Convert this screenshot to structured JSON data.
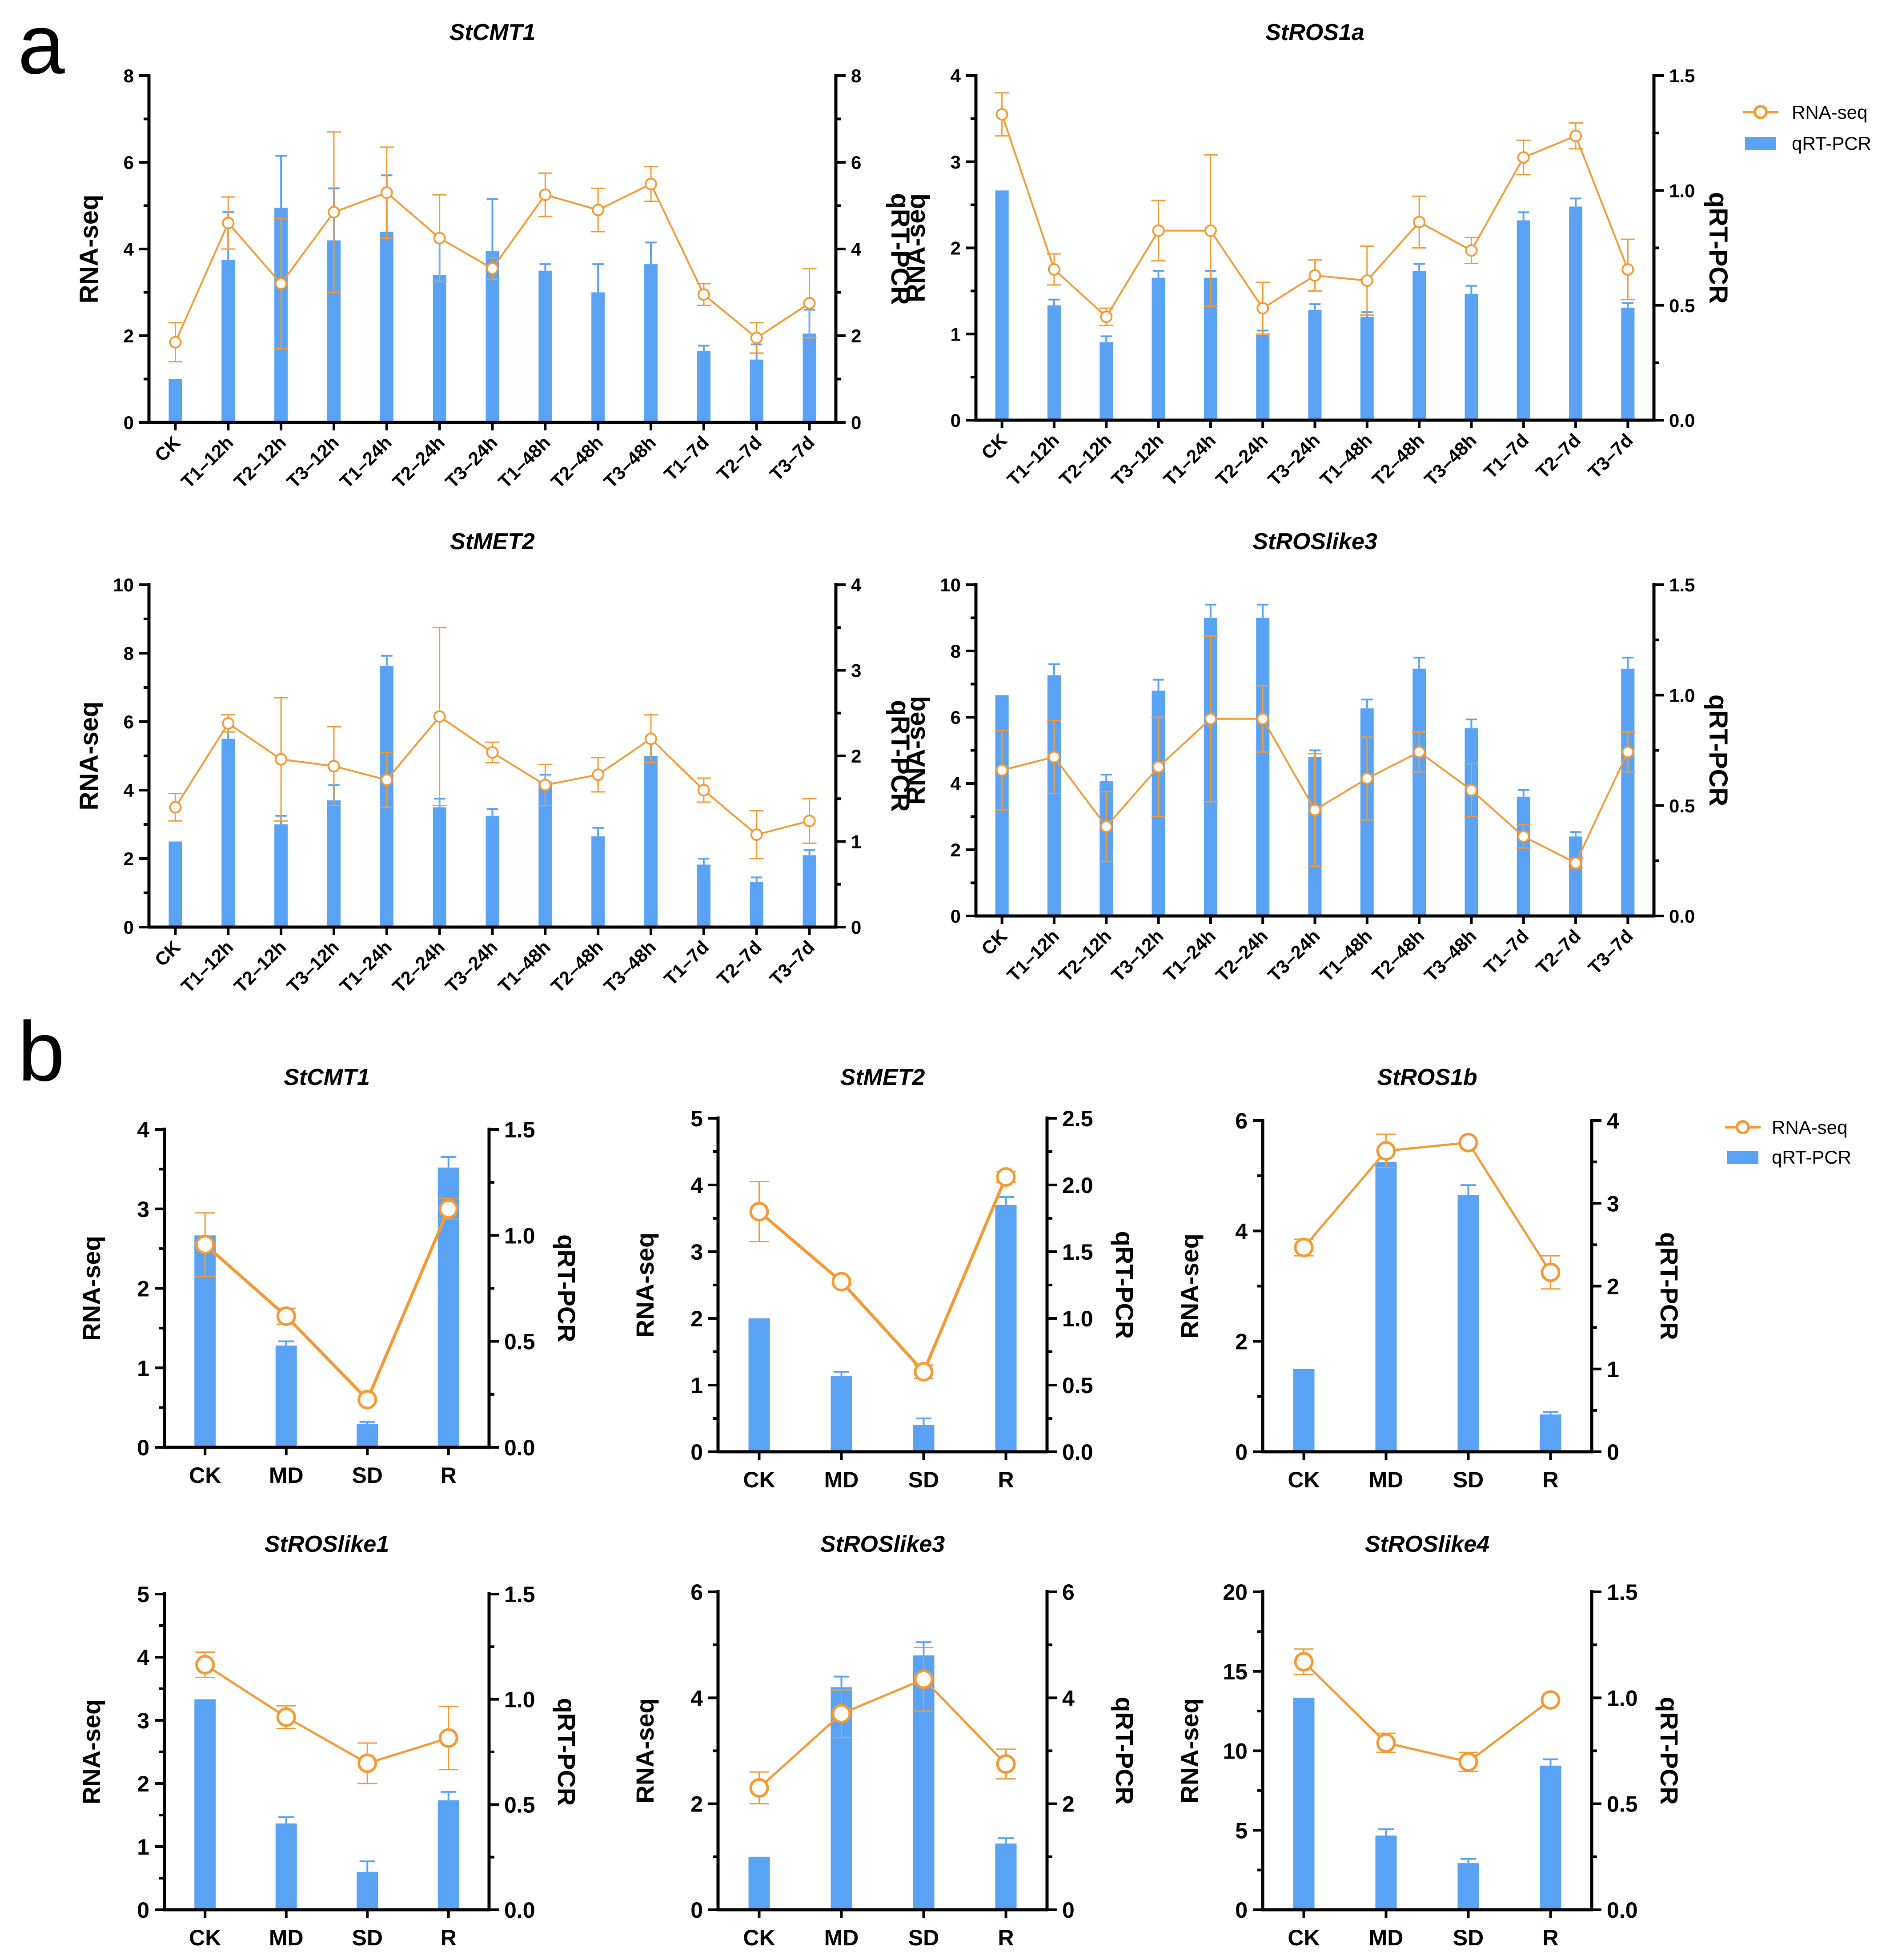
{
  "panels": {
    "a": "a",
    "b": "b"
  },
  "legend": {
    "line_label": "RNA-seq",
    "bar_label": "qRT-PCR"
  },
  "colors": {
    "line": "#F39A35",
    "bar": "#5AA3F4",
    "axis": "#000000"
  },
  "chart_data": [
    {
      "id": "a1",
      "type": "bar+line",
      "title": "StCMT1",
      "ylabel_left": "RNA-seq",
      "ylabel_right": "qRT-PCR",
      "ylim_left": [
        0,
        8
      ],
      "yticks_left": [
        0,
        2,
        4,
        6,
        8
      ],
      "ylim_right": [
        0,
        8
      ],
      "yticks_right": [
        0,
        2,
        4,
        6,
        8
      ],
      "categories": [
        "CK",
        "T1–12h",
        "T2–12h",
        "T3–12h",
        "T1–24h",
        "T2–24h",
        "T3–24h",
        "T1–48h",
        "T2–48h",
        "T3–48h",
        "T1–7d",
        "T2–7d",
        "T3–7d"
      ],
      "series": [
        {
          "name": "RNA-seq",
          "kind": "line",
          "axis": "left",
          "values": [
            1.85,
            4.6,
            3.2,
            4.85,
            5.3,
            4.25,
            3.55,
            5.25,
            4.9,
            5.5,
            2.95,
            1.95,
            2.75
          ],
          "errors": [
            0.45,
            0.6,
            1.5,
            1.85,
            1.05,
            1.0,
            0.25,
            0.5,
            0.5,
            0.4,
            0.25,
            0.35,
            0.8
          ]
        },
        {
          "name": "qRT-PCR",
          "kind": "bar",
          "axis": "right",
          "values": [
            1.0,
            3.75,
            4.95,
            4.2,
            4.4,
            3.4,
            3.95,
            3.5,
            3.0,
            3.65,
            1.65,
            1.45,
            2.05
          ],
          "errors": [
            0,
            1.1,
            1.2,
            1.2,
            1.3,
            0.8,
            1.2,
            0.15,
            0.65,
            0.5,
            0.12,
            0.35,
            0.55
          ]
        }
      ]
    },
    {
      "id": "a2",
      "type": "bar+line",
      "title": "StROS1a",
      "ylabel_left": "RNA-seq",
      "ylabel_right": "qRT-PCR",
      "ylim_left": [
        0,
        4
      ],
      "yticks_left": [
        0,
        1,
        2,
        3,
        4
      ],
      "ylim_right": [
        0,
        1.5
      ],
      "yticks_right": [
        0.0,
        0.5,
        1.0,
        1.5
      ],
      "right_tick_format": 1,
      "categories": [
        "CK",
        "T1–12h",
        "T2–12h",
        "T3–12h",
        "T1–24h",
        "T2–24h",
        "T3–24h",
        "T1–48h",
        "T2–48h",
        "T3–48h",
        "T1–7d",
        "T2–7d",
        "T3–7d"
      ],
      "series": [
        {
          "name": "RNA-seq",
          "kind": "line",
          "axis": "left",
          "values": [
            3.55,
            1.75,
            1.2,
            2.2,
            2.2,
            1.3,
            1.68,
            1.62,
            2.3,
            1.97,
            3.05,
            3.3,
            1.75
          ],
          "errors": [
            0.25,
            0.18,
            0.1,
            0.35,
            0.88,
            0.3,
            0.18,
            0.4,
            0.3,
            0.15,
            0.2,
            0.15,
            0.35
          ]
        },
        {
          "name": "qRT-PCR",
          "kind": "bar",
          "axis": "right",
          "values": [
            1.0,
            0.5,
            0.34,
            0.62,
            0.62,
            0.37,
            0.48,
            0.45,
            0.65,
            0.55,
            0.87,
            0.93,
            0.49
          ],
          "errors": [
            0,
            0.025,
            0.025,
            0.03,
            0.03,
            0.02,
            0.025,
            0.02,
            0.03,
            0.035,
            0.035,
            0.035,
            0.02
          ]
        }
      ]
    },
    {
      "id": "a3",
      "type": "bar+line",
      "title": "StMET2",
      "ylabel_left": "RNA-seq",
      "ylabel_right": "qRT-PCR",
      "ylim_left": [
        0,
        10
      ],
      "yticks_left": [
        0,
        2,
        4,
        6,
        8,
        10
      ],
      "ylim_right": [
        0,
        4
      ],
      "yticks_right": [
        0,
        1,
        2,
        3,
        4
      ],
      "categories": [
        "CK",
        "T1–12h",
        "T2–12h",
        "T3–12h",
        "T1–24h",
        "T2–24h",
        "T3–24h",
        "T1–48h",
        "T2–48h",
        "T3–48h",
        "T1–7d",
        "T2–7d",
        "T3–7d"
      ],
      "series": [
        {
          "name": "RNA-seq",
          "kind": "line",
          "axis": "left",
          "values": [
            3.5,
            5.95,
            4.9,
            4.7,
            4.3,
            6.15,
            5.1,
            4.15,
            4.45,
            5.5,
            4.0,
            2.7,
            3.1
          ],
          "errors": [
            0.4,
            0.25,
            1.8,
            1.15,
            0.8,
            2.6,
            0.3,
            0.6,
            0.5,
            0.7,
            0.35,
            0.7,
            0.65
          ]
        },
        {
          "name": "qRT-PCR",
          "kind": "bar",
          "axis": "right",
          "values": [
            1.0,
            2.2,
            1.2,
            1.48,
            3.05,
            1.4,
            1.3,
            1.7,
            1.06,
            2.0,
            0.73,
            0.53,
            0.84
          ],
          "errors": [
            0,
            0.2,
            0.1,
            0.18,
            0.12,
            0.1,
            0.08,
            0.08,
            0.1,
            0.2,
            0.07,
            0.05,
            0.06
          ]
        }
      ]
    },
    {
      "id": "a4",
      "type": "bar+line",
      "title": "StROSlike3",
      "ylabel_left": "RNA-seq",
      "ylabel_right": "qRT-PCR",
      "ylim_left": [
        0,
        10
      ],
      "yticks_left": [
        0,
        2,
        4,
        6,
        8,
        10
      ],
      "ylim_right": [
        0,
        1.5
      ],
      "yticks_right": [
        0.0,
        0.5,
        1.0,
        1.5
      ],
      "right_tick_format": 1,
      "categories": [
        "CK",
        "T1–12h",
        "T2–12h",
        "T3–12h",
        "T1–24h",
        "T2–24h",
        "T3–24h",
        "T1–48h",
        "T2–48h",
        "T3–48h",
        "T1–7d",
        "T2–7d",
        "T3–7d"
      ],
      "series": [
        {
          "name": "RNA-seq",
          "kind": "line",
          "axis": "left",
          "values": [
            4.4,
            4.8,
            2.7,
            4.5,
            5.95,
            5.95,
            3.2,
            4.15,
            4.95,
            3.8,
            2.4,
            1.6,
            4.95
          ],
          "errors": [
            1.2,
            1.1,
            1.05,
            1.5,
            2.5,
            1.0,
            1.7,
            1.25,
            0.6,
            0.8,
            0.35,
            0.15,
            0.6
          ]
        },
        {
          "name": "qRT-PCR",
          "kind": "bar",
          "axis": "right",
          "values": [
            1.0,
            1.09,
            0.61,
            1.02,
            1.35,
            1.35,
            0.72,
            0.94,
            1.12,
            0.85,
            0.54,
            0.36,
            1.12
          ],
          "errors": [
            0,
            0.05,
            0.03,
            0.05,
            0.06,
            0.06,
            0.03,
            0.04,
            0.05,
            0.04,
            0.03,
            0.02,
            0.05
          ]
        }
      ]
    },
    {
      "id": "b1",
      "type": "bar+line",
      "title": "StCMT1",
      "ylabel_left": "RNA-seq",
      "ylabel_right": "qRT-PCR",
      "ylim_left": [
        0,
        4
      ],
      "yticks_left": [
        0,
        1,
        2,
        3,
        4
      ],
      "ylim_right": [
        0,
        1.5
      ],
      "yticks_right": [
        0.0,
        0.5,
        1.0,
        1.5
      ],
      "right_tick_format": 1,
      "categories": [
        "CK",
        "MD",
        "SD",
        "R"
      ],
      "series": [
        {
          "name": "RNA-seq",
          "kind": "line",
          "axis": "left",
          "values": [
            2.55,
            1.65,
            0.6,
            3.0
          ],
          "errors": [
            0.4,
            0.1,
            0,
            0.13
          ]
        },
        {
          "name": "qRT-PCR",
          "kind": "bar",
          "axis": "right",
          "values": [
            1.0,
            0.48,
            0.11,
            1.32
          ],
          "errors": [
            0,
            0.02,
            0.01,
            0.05
          ]
        }
      ]
    },
    {
      "id": "b2",
      "type": "bar+line",
      "title": "StMET2",
      "ylabel_left": "RNA-seq",
      "ylabel_right": "qRT-PCR",
      "ylim_left": [
        0,
        5
      ],
      "yticks_left": [
        0,
        1,
        2,
        3,
        4,
        5
      ],
      "ylim_right": [
        0,
        2.5
      ],
      "yticks_right": [
        0.0,
        0.5,
        1.0,
        1.5,
        2.0,
        2.5
      ],
      "right_tick_format": 1,
      "categories": [
        "CK",
        "MD",
        "SD",
        "R"
      ],
      "series": [
        {
          "name": "RNA-seq",
          "kind": "line",
          "axis": "left",
          "values": [
            3.6,
            2.55,
            1.2,
            4.12
          ],
          "errors": [
            0.45,
            0.05,
            0.1,
            0.08
          ]
        },
        {
          "name": "qRT-PCR",
          "kind": "bar",
          "axis": "right",
          "values": [
            1.0,
            0.57,
            0.2,
            1.85
          ],
          "errors": [
            0,
            0.03,
            0.05,
            0.06
          ]
        }
      ]
    },
    {
      "id": "b3",
      "type": "bar+line",
      "title": "StROS1b",
      "ylabel_left": "RNA-seq",
      "ylabel_right": "qRT-PCR",
      "ylim_left": [
        0,
        6
      ],
      "yticks_left": [
        0,
        2,
        4,
        6
      ],
      "ylim_right": [
        0,
        4
      ],
      "yticks_right": [
        0,
        1,
        2,
        3,
        4
      ],
      "categories": [
        "CK",
        "MD",
        "SD",
        "R"
      ],
      "series": [
        {
          "name": "RNA-seq",
          "kind": "line",
          "axis": "left",
          "values": [
            3.7,
            5.45,
            5.6,
            3.25
          ],
          "errors": [
            0.15,
            0.3,
            0,
            0.3
          ]
        },
        {
          "name": "qRT-PCR",
          "kind": "bar",
          "axis": "right",
          "values": [
            1.0,
            3.5,
            3.1,
            0.45
          ],
          "errors": [
            0,
            0.15,
            0.12,
            0.03
          ]
        }
      ]
    },
    {
      "id": "b4",
      "type": "bar+line",
      "title": "StROSlike1",
      "ylabel_left": "RNA-seq",
      "ylabel_right": "qRT-PCR",
      "ylim_left": [
        0,
        5
      ],
      "yticks_left": [
        0,
        1,
        2,
        3,
        4,
        5
      ],
      "ylim_right": [
        0,
        1.5
      ],
      "yticks_right": [
        0.0,
        0.5,
        1.0,
        1.5
      ],
      "right_tick_format": 1,
      "categories": [
        "CK",
        "MD",
        "SD",
        "R"
      ],
      "series": [
        {
          "name": "RNA-seq",
          "kind": "line",
          "axis": "left",
          "values": [
            3.88,
            3.05,
            2.32,
            2.72
          ],
          "errors": [
            0.2,
            0.18,
            0.32,
            0.5
          ]
        },
        {
          "name": "qRT-PCR",
          "kind": "bar",
          "axis": "right",
          "values": [
            1.0,
            0.41,
            0.18,
            0.52
          ],
          "errors": [
            0,
            0.03,
            0.05,
            0.04
          ]
        }
      ]
    },
    {
      "id": "b5",
      "type": "bar+line",
      "title": "StROSlike3",
      "ylabel_left": "RNA-seq",
      "ylabel_right": "qRT-PCR",
      "ylim_left": [
        0,
        6
      ],
      "yticks_left": [
        0,
        2,
        4,
        6
      ],
      "ylim_right": [
        0,
        6
      ],
      "yticks_right": [
        0,
        2,
        4,
        6
      ],
      "categories": [
        "CK",
        "MD",
        "SD",
        "R"
      ],
      "series": [
        {
          "name": "RNA-seq",
          "kind": "line",
          "axis": "left",
          "values": [
            2.3,
            3.7,
            4.35,
            2.75
          ],
          "errors": [
            0.3,
            0.45,
            0.6,
            0.28
          ]
        },
        {
          "name": "qRT-PCR",
          "kind": "bar",
          "axis": "right",
          "values": [
            1.0,
            4.2,
            4.8,
            1.25
          ],
          "errors": [
            0,
            0.2,
            0.25,
            0.1
          ]
        }
      ]
    },
    {
      "id": "b6",
      "type": "bar+line",
      "title": "StROSlike4",
      "ylabel_left": "RNA-seq",
      "ylabel_right": "qRT-PCR",
      "ylim_left": [
        0,
        20
      ],
      "yticks_left": [
        0,
        5,
        10,
        15,
        20
      ],
      "ylim_right": [
        0,
        1.5
      ],
      "yticks_right": [
        0.0,
        0.5,
        1.0,
        1.5
      ],
      "right_tick_format": 1,
      "categories": [
        "CK",
        "MD",
        "SD",
        "R"
      ],
      "series": [
        {
          "name": "RNA-seq",
          "kind": "line",
          "axis": "left",
          "values": [
            15.6,
            10.5,
            9.3,
            13.2
          ],
          "errors": [
            0.8,
            0.6,
            0.6,
            0
          ]
        },
        {
          "name": "qRT-PCR",
          "kind": "bar",
          "axis": "right",
          "values": [
            1.0,
            0.35,
            0.22,
            0.68
          ],
          "errors": [
            0,
            0.03,
            0.02,
            0.03
          ]
        }
      ]
    }
  ]
}
